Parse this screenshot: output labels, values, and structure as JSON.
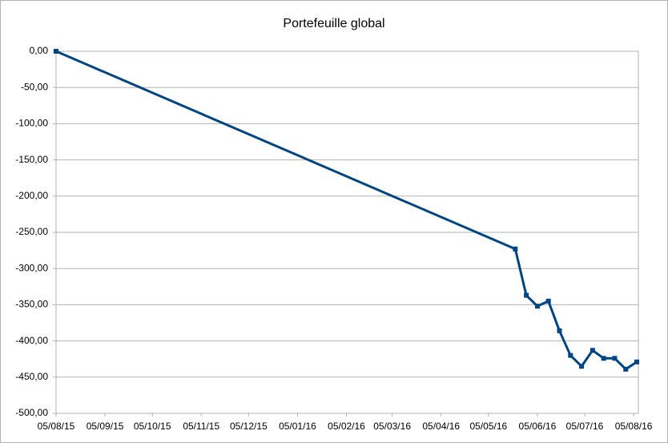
{
  "chart_data": {
    "type": "line",
    "title": "Portefeuille global",
    "x": [
      "2015-08-05",
      "2016-05-22",
      "2016-05-29",
      "2016-06-05",
      "2016-06-12",
      "2016-06-19",
      "2016-06-26",
      "2016-07-03",
      "2016-07-10",
      "2016-07-17",
      "2016-07-24",
      "2016-07-31",
      "2016-08-07"
    ],
    "series": [
      {
        "name": "Portefeuille global",
        "color": "#004586",
        "values": [
          0,
          -273,
          -337,
          -352,
          -345,
          -386,
          -420,
          -435,
          -413,
          -424,
          -424,
          -439,
          -429
        ]
      }
    ],
    "xlim": [
      "2015-08-05",
      "2016-08-08"
    ],
    "xticks": [
      {
        "value": "2015-08-05",
        "label": "05/08/15"
      },
      {
        "value": "2015-09-05",
        "label": "05/09/15"
      },
      {
        "value": "2015-10-05",
        "label": "05/10/15"
      },
      {
        "value": "2015-11-05",
        "label": "05/11/15"
      },
      {
        "value": "2015-12-05",
        "label": "05/12/15"
      },
      {
        "value": "2016-01-05",
        "label": "05/01/16"
      },
      {
        "value": "2016-02-05",
        "label": "05/02/16"
      },
      {
        "value": "2016-03-05",
        "label": "05/03/16"
      },
      {
        "value": "2016-04-05",
        "label": "05/04/16"
      },
      {
        "value": "2016-05-05",
        "label": "05/05/16"
      },
      {
        "value": "2016-06-05",
        "label": "05/06/16"
      },
      {
        "value": "2016-07-05",
        "label": "05/07/16"
      },
      {
        "value": "2016-08-05",
        "label": "05/08/16"
      }
    ],
    "ylim": [
      -500,
      0
    ],
    "yticks": [
      {
        "value": 0,
        "label": "0,00"
      },
      {
        "value": -50,
        "label": "-50,00"
      },
      {
        "value": -100,
        "label": "-100,00"
      },
      {
        "value": -150,
        "label": "-150,00"
      },
      {
        "value": -200,
        "label": "-200,00"
      },
      {
        "value": -250,
        "label": "-250,00"
      },
      {
        "value": -300,
        "label": "-300,00"
      },
      {
        "value": -350,
        "label": "-350,00"
      },
      {
        "value": -400,
        "label": "-400,00"
      },
      {
        "value": -450,
        "label": "-450,00"
      },
      {
        "value": -500,
        "label": "-500,00"
      }
    ],
    "grid": true
  }
}
